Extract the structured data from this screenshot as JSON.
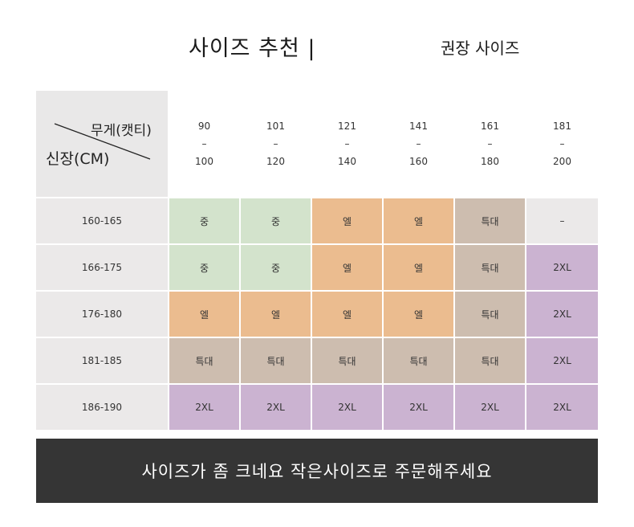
{
  "title": "사이즈 추천 |",
  "subtitle": "권장 사이즈",
  "table": {
    "corner_weight_label": "무게(캣티)",
    "corner_height_label": "신장(CM)",
    "weight_columns": [
      {
        "from": "90",
        "dash": "–",
        "to": "100"
      },
      {
        "from": "101",
        "dash": "–",
        "to": "120"
      },
      {
        "from": "121",
        "dash": "–",
        "to": "140"
      },
      {
        "from": "141",
        "dash": "–",
        "to": "160"
      },
      {
        "from": "161",
        "dash": "–",
        "to": "180"
      },
      {
        "from": "181",
        "dash": "–",
        "to": "200"
      }
    ],
    "rows": [
      {
        "height": "160-165",
        "sizes": [
          "중",
          "중",
          "엘",
          "엘",
          "특대",
          "–"
        ]
      },
      {
        "height": "166-175",
        "sizes": [
          "중",
          "중",
          "엘",
          "엘",
          "특대",
          "2XL"
        ]
      },
      {
        "height": "176-180",
        "sizes": [
          "엘",
          "엘",
          "엘",
          "엘",
          "특대",
          "2XL"
        ]
      },
      {
        "height": "181-185",
        "sizes": [
          "특대",
          "특대",
          "특대",
          "특대",
          "특대",
          "2XL"
        ]
      },
      {
        "height": "186-190",
        "sizes": [
          "2XL",
          "2XL",
          "2XL",
          "2XL",
          "2XL",
          "2XL"
        ]
      }
    ]
  },
  "size_colors": {
    "중": "#d3e3cc",
    "엘": "#ebbc8f",
    "특대": "#cdbdaf",
    "2XL": "#cbb3d1",
    "–": "#ebe9e9"
  },
  "banner": "사이즈가 좀 크네요 작은사이즈로 주문해주세요"
}
